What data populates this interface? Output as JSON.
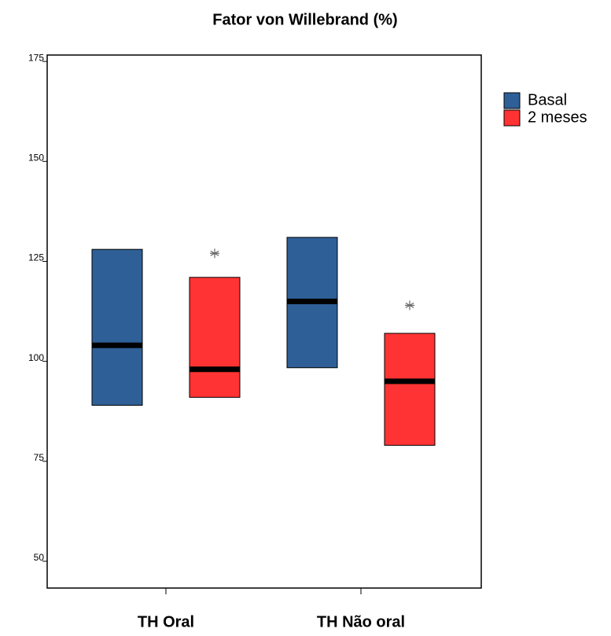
{
  "chart_data": {
    "type": "box",
    "title": "Fator von Willebrand (%)",
    "categories": [
      "TH Oral",
      "TH Não oral"
    ],
    "series": [
      {
        "name": "Basal",
        "color": "#2f5f97",
        "q1": [
          89,
          98.4
        ],
        "median": [
          104,
          115
        ],
        "q3": [
          128,
          131
        ],
        "outliers": [
          null,
          null
        ]
      },
      {
        "name": "2 meses",
        "color": "#ff3333",
        "q1": [
          91,
          79
        ],
        "median": [
          98,
          95
        ],
        "q3": [
          121,
          107
        ],
        "outliers": [
          127,
          114
        ]
      }
    ],
    "ylim": [
      43.3,
      176.6
    ],
    "yticks": [
      50,
      75,
      100,
      125,
      150,
      175
    ],
    "legend": "right"
  }
}
